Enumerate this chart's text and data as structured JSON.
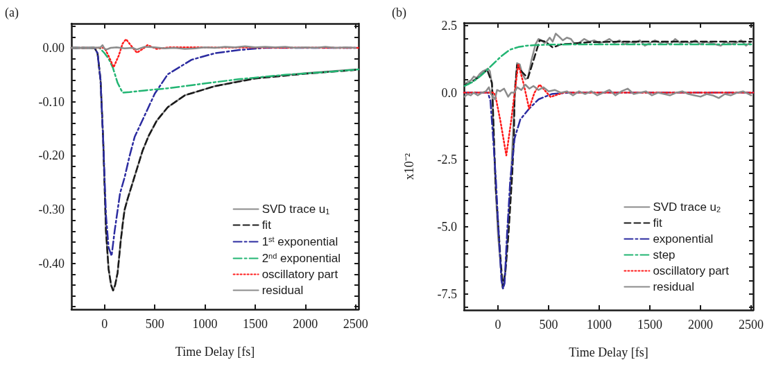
{
  "chart_data": [
    {
      "type": "line",
      "title": "(a)",
      "xlabel": "Time Delay [fs]",
      "xlim": [
        -330,
        2530
      ],
      "xticks": [
        0,
        500,
        1000,
        1500,
        2000,
        2500
      ],
      "ylim": [
        -0.485,
        0.045
      ],
      "yticks": [
        {
          "value": 0.04,
          "label": null
        },
        {
          "value": 0.02,
          "label": null
        },
        {
          "value": 0,
          "label": "0.00"
        },
        {
          "value": -0.02,
          "label": null
        },
        {
          "value": -0.04,
          "label": null
        },
        {
          "value": -0.06,
          "label": null
        },
        {
          "value": -0.08,
          "label": null
        },
        {
          "value": -0.1,
          "label": "-0.10"
        },
        {
          "value": -0.12,
          "label": null
        },
        {
          "value": -0.14,
          "label": null
        },
        {
          "value": -0.16,
          "label": null
        },
        {
          "value": -0.18,
          "label": null
        },
        {
          "value": -0.2,
          "label": "-0.20"
        },
        {
          "value": -0.22,
          "label": null
        },
        {
          "value": -0.24,
          "label": null
        },
        {
          "value": -0.26,
          "label": null
        },
        {
          "value": -0.28,
          "label": null
        },
        {
          "value": -0.3,
          "label": "-0.30"
        },
        {
          "value": -0.32,
          "label": null
        },
        {
          "value": -0.34,
          "label": null
        },
        {
          "value": -0.36,
          "label": null
        },
        {
          "value": -0.38,
          "label": null
        },
        {
          "value": -0.4,
          "label": "-0.40"
        },
        {
          "value": -0.42,
          "label": null
        },
        {
          "value": -0.44,
          "label": null
        },
        {
          "value": -0.46,
          "label": null
        },
        {
          "value": -0.48,
          "label": null
        }
      ],
      "grid": false,
      "legend": "bottom right",
      "marker": "none",
      "series": [
        {
          "name": "SVD trace u$_{1}$",
          "color": "#8c8c8c",
          "line_style": "solid",
          "x": [
            -330,
            -100,
            -70,
            -40,
            -14,
            14,
            40,
            65,
            85,
            105,
            130,
            160,
            185,
            200,
            230,
            280,
            330,
            380,
            440,
            520,
            630,
            800,
            1100,
            1500,
            2000,
            2500
          ],
          "values": [
            0,
            0,
            -0.01,
            -0.06,
            -0.17,
            -0.34,
            -0.41,
            -0.44,
            -0.45,
            -0.44,
            -0.417,
            -0.36,
            -0.32,
            -0.3,
            -0.28,
            -0.25,
            -0.22,
            -0.19,
            -0.163,
            -0.135,
            -0.11,
            -0.088,
            -0.071,
            -0.056,
            -0.047,
            -0.04
          ]
        },
        {
          "name": "fit",
          "color": "#1a1a1a",
          "line_style": "dashed",
          "x": [
            -330,
            -100,
            -70,
            -40,
            -14,
            14,
            40,
            65,
            85,
            105,
            130,
            160,
            185,
            200,
            230,
            280,
            330,
            380,
            440,
            520,
            630,
            800,
            1100,
            1500,
            2000,
            2500
          ],
          "values": [
            0,
            0,
            -0.01,
            -0.06,
            -0.17,
            -0.34,
            -0.41,
            -0.44,
            -0.45,
            -0.44,
            -0.417,
            -0.36,
            -0.32,
            -0.3,
            -0.28,
            -0.25,
            -0.22,
            -0.19,
            -0.163,
            -0.135,
            -0.11,
            -0.088,
            -0.071,
            -0.057,
            -0.048,
            -0.041
          ]
        },
        {
          "name": "1$^{st}$ exponential",
          "color": "#2b2ba0",
          "line_style": "dashdot",
          "x": [
            -330,
            -100,
            -70,
            -40,
            -14,
            14,
            40,
            70,
            100,
            154,
            200,
            250,
            300,
            393,
            500,
            630,
            867,
            1100,
            1343,
            1600,
            2530
          ],
          "values": [
            0,
            0,
            -0.01,
            -0.06,
            -0.17,
            -0.31,
            -0.37,
            -0.386,
            -0.34,
            -0.27,
            -0.24,
            -0.2,
            -0.165,
            -0.128,
            -0.085,
            -0.049,
            -0.022,
            -0.01,
            -0.004,
            0,
            0
          ]
        },
        {
          "name": "2$^{nd}$ exponential",
          "color": "#22b573",
          "line_style": "dashdot",
          "x": [
            -330,
            -50,
            0,
            40,
            83,
            130,
            179,
            250,
            400,
            630,
            1000,
            1343,
            1800,
            2200,
            2530
          ],
          "values": [
            0,
            0,
            -0.01,
            -0.02,
            -0.037,
            -0.065,
            -0.083,
            -0.082,
            -0.079,
            -0.075,
            -0.066,
            -0.058,
            -0.05,
            -0.045,
            -0.04
          ]
        },
        {
          "name": "oscillatory part",
          "color": "#ff1a1a",
          "line_style": "dotted",
          "x": [
            -330,
            0,
            40,
            90,
            140,
            180,
            214,
            260,
            322,
            380,
            428,
            520,
            650,
            2530
          ],
          "values": [
            0,
            0,
            -0.015,
            -0.036,
            -0.015,
            0.008,
            0.016,
            0.005,
            -0.009,
            -0.002,
            0.005,
            -0.002,
            0.001,
            0
          ]
        },
        {
          "name": "residual",
          "color": "#8c8c8c",
          "line_style": "solid",
          "x": [
            -330,
            -200,
            -100,
            -40,
            -20,
            0,
            20,
            60,
            120,
            200,
            280,
            320,
            400,
            500,
            600,
            700,
            800,
            900,
            1000,
            1100,
            1200,
            1300,
            1400,
            1500,
            1600,
            1700,
            1800,
            1900,
            2000,
            2100,
            2200,
            2300,
            2400,
            2500
          ],
          "values": [
            0,
            0,
            0,
            0.001,
            0.005,
            -0.002,
            -0.003,
            0,
            0.001,
            -0.001,
            0,
            -0.003,
            0.002,
            0.001,
            -0.001,
            0,
            -0.002,
            -0.001,
            0.001,
            0,
            0.002,
            0.001,
            0.003,
            0.001,
            0.002,
            0.001,
            0.002,
            0,
            0.001,
            0,
            0.002,
            0,
            0.001,
            0
          ]
        }
      ]
    },
    {
      "type": "line",
      "title": "(b)",
      "xlabel": "Time Delay [fs]",
      "ylabel": "x10⁻²",
      "xlim": [
        -336,
        2520
      ],
      "xticks": [
        0,
        500,
        1000,
        1500,
        2000,
        2500
      ],
      "ylim": [
        -8.1,
        2.6
      ],
      "yticks": [
        {
          "value": 2.5,
          "label": "2.5"
        },
        {
          "value": 2,
          "label": null
        },
        {
          "value": 1.5,
          "label": null
        },
        {
          "value": 1,
          "label": null
        },
        {
          "value": 0.5,
          "label": null
        },
        {
          "value": 0,
          "label": "0.0"
        },
        {
          "value": -0.5,
          "label": null
        },
        {
          "value": -1,
          "label": null
        },
        {
          "value": -1.5,
          "label": null
        },
        {
          "value": -2,
          "label": null
        },
        {
          "value": -2.5,
          "label": "-2.5"
        },
        {
          "value": -3,
          "label": null
        },
        {
          "value": -3.5,
          "label": null
        },
        {
          "value": -4,
          "label": null
        },
        {
          "value": -4.5,
          "label": null
        },
        {
          "value": -5,
          "label": "-5.0"
        },
        {
          "value": -5.5,
          "label": null
        },
        {
          "value": -6,
          "label": null
        },
        {
          "value": -6.5,
          "label": null
        },
        {
          "value": -7,
          "label": null
        },
        {
          "value": -7.5,
          "label": "-7.5"
        },
        {
          "value": -8,
          "label": null
        }
      ],
      "grid": false,
      "legend": "bottom right",
      "marker": "none",
      "series": [
        {
          "name": "SVD trace u$_{2}$",
          "color": "#8c8c8c",
          "line_style": "solid",
          "x": [
            -330,
            -300,
            -270,
            -240,
            -210,
            -180,
            -150,
            -120,
            -100,
            -80,
            -60,
            -40,
            -20,
            0,
            23,
            47,
            70,
            100,
            130,
            160,
            188,
            215,
            240,
            270,
            295,
            330,
            370,
            400,
            430,
            460,
            480,
            510,
            540,
            570,
            600,
            640,
            680,
            720,
            760,
            800,
            850,
            900,
            950,
            1000,
            1050,
            1100,
            1150,
            1200,
            1250,
            1300,
            1350,
            1400,
            1450,
            1500,
            1550,
            1600,
            1650,
            1700,
            1750,
            1800,
            1850,
            1900,
            1950,
            2000,
            2050,
            2100,
            2150,
            2200,
            2250,
            2300,
            2350,
            2400,
            2450,
            2500
          ],
          "values": [
            0.3,
            0.4,
            0.45,
            0.6,
            0.55,
            0.7,
            0.8,
            0.85,
            0.9,
            0.8,
            0.3,
            -2,
            -3.8,
            -5.3,
            -6.3,
            -7.3,
            -6.8,
            -5,
            -3,
            -0.5,
            1.1,
            1.05,
            0.7,
            0.5,
            0.55,
            1.2,
            1.8,
            2,
            1.95,
            1.85,
            1.9,
            2.05,
            1.9,
            2.2,
            2.1,
            1.95,
            2.05,
            2,
            1.8,
            1.85,
            2,
            1.9,
            1.95,
            1.85,
            1.9,
            2,
            1.85,
            1.95,
            1.8,
            1.9,
            1.85,
            1.95,
            1.75,
            1.85,
            1.95,
            1.85,
            1.9,
            1.8,
            2,
            1.85,
            1.9,
            1.85,
            1.95,
            1.8,
            1.9,
            1.85,
            1.8,
            1.75,
            1.9,
            1.8,
            1.85,
            1.95,
            1.75,
            1.9
          ]
        },
        {
          "name": "fit",
          "color": "#1a1a1a",
          "line_style": "dashed",
          "x": [
            -330,
            -296,
            -200,
            -107,
            -60,
            -55,
            -24,
            23,
            47,
            75,
            105,
            141,
            157,
            164,
            188,
            230,
            295,
            350,
            411,
            470,
            541,
            620,
            705,
            900,
            1200,
            1600,
            2000,
            2500
          ],
          "values": [
            0.3,
            0.32,
            0.55,
            0.85,
            0.37,
            0,
            -3.45,
            -6.07,
            -7.25,
            -6.6,
            -5.2,
            -3,
            -1.68,
            0,
            1.03,
            0.8,
            0.54,
            1.2,
            1.95,
            1.9,
            1.68,
            1.8,
            1.82,
            1.88,
            1.9,
            1.9,
            1.9,
            1.9
          ]
        },
        {
          "name": "exponential",
          "color": "#2b2ba0",
          "line_style": "dashdot",
          "x": [
            -336,
            -100,
            -75,
            -48,
            -20,
            0,
            34,
            50,
            65,
            90,
            105,
            120,
            164,
            220,
            307,
            400,
            530,
            700,
            2520
          ],
          "values": [
            0,
            0,
            -0.3,
            -1.7,
            -3.3,
            -4.8,
            -7,
            -7.3,
            -7.1,
            -5.2,
            -4.3,
            -3.3,
            -1.7,
            -1,
            -0.6,
            -0.25,
            -0.05,
            0,
            0
          ]
        },
        {
          "name": "step",
          "color": "#22b573",
          "line_style": "dashdot",
          "x": [
            -330,
            -250,
            -180,
            -107,
            -40,
            30,
            116,
            200,
            280,
            370,
            500,
            800,
            1500,
            2500
          ],
          "values": [
            0.25,
            0.4,
            0.6,
            0.85,
            1.1,
            1.35,
            1.6,
            1.7,
            1.75,
            1.77,
            1.79,
            1.8,
            1.8,
            1.8
          ]
        },
        {
          "name": "oscillatory part",
          "color": "#ff1a1a",
          "line_style": "dotted",
          "x": [
            -336,
            -40,
            -24,
            23,
            82,
            130,
            200,
            255,
            307,
            360,
            411,
            519,
            661,
            720,
            2520
          ],
          "values": [
            0,
            0,
            -0.15,
            -1.04,
            -2.34,
            -1.04,
            1.07,
            0.3,
            -0.6,
            0,
            0.3,
            -0.16,
            0.02,
            0,
            0
          ]
        },
        {
          "name": "residual",
          "color": "#8c8c8c",
          "line_style": "solid",
          "x": [
            -330,
            -300,
            -270,
            -240,
            -200,
            -160,
            -120,
            -90,
            -70,
            -30,
            -10,
            20,
            60,
            100,
            130,
            160,
            190,
            230,
            270,
            310,
            350,
            400,
            450,
            500,
            560,
            620,
            680,
            740,
            800,
            860,
            920,
            980,
            1040,
            1100,
            1160,
            1220,
            1280,
            1340,
            1400,
            1460,
            1520,
            1580,
            1640,
            1700,
            1760,
            1820,
            1880,
            1940,
            2000,
            2060,
            2120,
            2180,
            2240,
            2300,
            2360,
            2420,
            2500
          ],
          "values": [
            -0.15,
            -0.05,
            -0.1,
            0,
            -0.1,
            0,
            0.05,
            0.2,
            -0.05,
            -0.25,
            0.1,
            0.05,
            0.15,
            -0.15,
            0,
            0,
            0.2,
            0.1,
            0.3,
            0.15,
            0.25,
            0.1,
            0.2,
            0.05,
            0.1,
            0,
            0.05,
            -0.1,
            0.05,
            -0.05,
            0.05,
            -0.1,
            0,
            0.1,
            -0.1,
            0.05,
            0.15,
            -0.05,
            0,
            0.05,
            -0.1,
            0,
            -0.05,
            -0.1,
            0,
            0.05,
            -0.05,
            -0.1,
            -0.15,
            -0.05,
            -0.1,
            -0.2,
            -0.05,
            -0.1,
            0,
            0.05,
            -0.1
          ]
        }
      ]
    }
  ]
}
